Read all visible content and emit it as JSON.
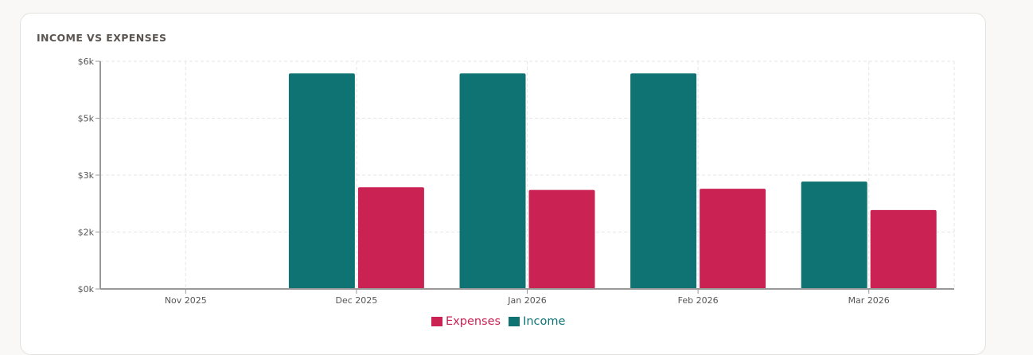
{
  "card": {
    "title": "INCOME VS EXPENSES"
  },
  "colors": {
    "income": "#0f7373",
    "expenses": "#c92253",
    "grid": "#e6e6e6",
    "axis": "#999999"
  },
  "legend": [
    {
      "label": "Expenses",
      "color": "#c92253"
    },
    {
      "label": "Income",
      "color": "#0f7373"
    }
  ],
  "chart_data": {
    "type": "bar",
    "title": "INCOME VS EXPENSES",
    "xlabel": "",
    "ylabel": "",
    "categories": [
      "Nov 2025",
      "Dec 2025",
      "Jan 2026",
      "Feb 2026",
      "Mar 2026"
    ],
    "series": [
      {
        "name": "Income",
        "color": "#0f7373",
        "values": [
          0,
          5680,
          5680,
          5680,
          2830
        ]
      },
      {
        "name": "Expenses",
        "color": "#c92253",
        "values": [
          0,
          2680,
          2610,
          2640,
          2080
        ]
      }
    ],
    "ylim": [
      0,
      6000
    ],
    "yticks": [
      0,
      1500,
      3000,
      4500,
      6000
    ],
    "ytick_labels": [
      "$0k",
      "$2k",
      "$3k",
      "$5k",
      "$6k"
    ],
    "grid": true,
    "legend_position": "bottom"
  }
}
